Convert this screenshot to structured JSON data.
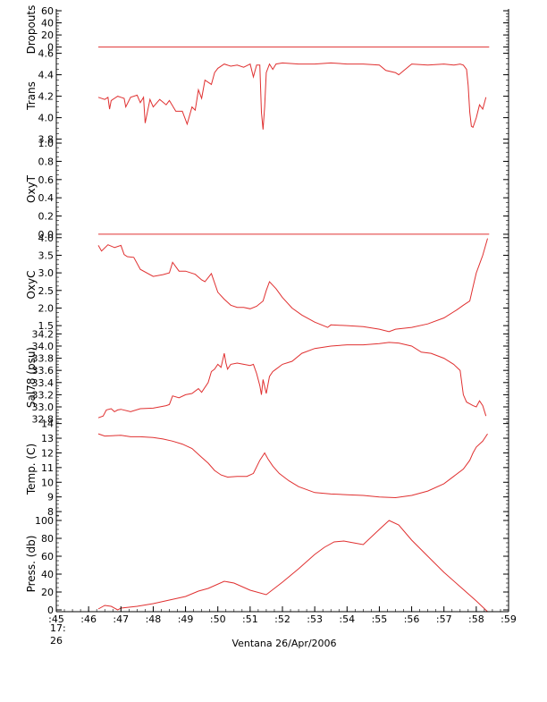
{
  "chart_data": {
    "type": "line",
    "title": "",
    "xlabel": "Ventana 26/Apr/2006",
    "x_start_label": [
      "17:",
      "26"
    ],
    "x_ticks": [
      ":45",
      ":46",
      ":47",
      ":48",
      ":49",
      ":50",
      ":51",
      ":52",
      ":53",
      ":54",
      ":55",
      ":56",
      ":57",
      ":58",
      ":59"
    ],
    "xlim": [
      45,
      59
    ],
    "grid": false,
    "line_color": "#e03030",
    "panels": [
      {
        "name": "dropouts",
        "ylabel": "Dropouts",
        "ylim": [
          -5,
          63
        ],
        "yticks": [
          0,
          20,
          40,
          60
        ],
        "series": [
          {
            "x": [
              46.3,
              58.4
            ],
            "y": [
              0,
              0
            ]
          }
        ]
      },
      {
        "name": "trans",
        "ylabel": "Trans",
        "ylim": [
          3.78,
          4.63
        ],
        "yticks": [
          3.8,
          4.0,
          4.2,
          4.4,
          4.6
        ],
        "ytick_labels": [
          "3.8",
          "4.0",
          "4.2",
          "4.4",
          "4.6"
        ],
        "series": [
          {
            "x": [
              46.3,
              46.5,
              46.6,
              46.65,
              46.7,
              46.9,
              47.0,
              47.1,
              47.15,
              47.3,
              47.5,
              47.6,
              47.7,
              47.75,
              47.9,
              48.0,
              48.2,
              48.4,
              48.5,
              48.7,
              48.9,
              49.05,
              49.2,
              49.3,
              49.4,
              49.5,
              49.6,
              49.8,
              49.9,
              50.0,
              50.2,
              50.4,
              50.6,
              50.8,
              51.0,
              51.1,
              51.2,
              51.3,
              51.35,
              51.4,
              51.45,
              51.5,
              51.6,
              51.7,
              51.8,
              52.0,
              52.5,
              53.0,
              53.5,
              54.0,
              54.5,
              55.0,
              55.2,
              55.5,
              55.6,
              55.8,
              56.0,
              56.5,
              57.0,
              57.3,
              57.5,
              57.6,
              57.7,
              57.75,
              57.8,
              57.85,
              57.9,
              58.0,
              58.1,
              58.2,
              58.3
            ],
            "y": [
              4.19,
              4.17,
              4.19,
              4.08,
              4.16,
              4.2,
              4.19,
              4.18,
              4.1,
              4.19,
              4.21,
              4.14,
              4.19,
              3.95,
              4.17,
              4.1,
              4.17,
              4.12,
              4.16,
              4.06,
              4.06,
              3.94,
              4.1,
              4.07,
              4.26,
              4.18,
              4.35,
              4.31,
              4.42,
              4.46,
              4.5,
              4.48,
              4.49,
              4.47,
              4.5,
              4.38,
              4.49,
              4.49,
              4.05,
              3.89,
              4.1,
              4.42,
              4.5,
              4.45,
              4.5,
              4.51,
              4.5,
              4.5,
              4.51,
              4.5,
              4.5,
              4.49,
              4.44,
              4.42,
              4.4,
              4.45,
              4.5,
              4.49,
              4.5,
              4.49,
              4.5,
              4.49,
              4.45,
              4.3,
              4.05,
              3.92,
              3.91,
              4.0,
              4.12,
              4.08,
              4.19
            ]
          }
        ]
      },
      {
        "name": "oxyt",
        "ylabel": "OxyT",
        "ylim": [
          -0.03,
          1.02
        ],
        "yticks": [
          0.0,
          0.2,
          0.4,
          0.6,
          0.8,
          1.0
        ],
        "ytick_labels": [
          "0.0",
          "0.2",
          "0.4",
          "0.6",
          "0.8",
          "1.0"
        ],
        "series": [
          {
            "x": [
              46.3,
              58.4
            ],
            "y": [
              0,
              0
            ]
          }
        ]
      },
      {
        "name": "oxyc",
        "ylabel": "OxyC",
        "ylim": [
          1.3,
          4.02
        ],
        "yticks": [
          1.5,
          2.0,
          2.5,
          3.0,
          3.5,
          4.0
        ],
        "ytick_labels": [
          "1.5",
          "2.0",
          "2.5",
          "3.0",
          "3.5",
          "4.0"
        ],
        "series": [
          {
            "x": [
              46.3,
              46.4,
              46.6,
              46.8,
              47.0,
              47.1,
              47.2,
              47.4,
              47.6,
              48.0,
              48.3,
              48.5,
              48.6,
              48.8,
              49.0,
              49.3,
              49.5,
              49.6,
              49.8,
              50.0,
              50.2,
              50.4,
              50.6,
              50.8,
              51.0,
              51.2,
              51.4,
              51.5,
              51.6,
              51.8,
              52.0,
              52.3,
              52.6,
              53.0,
              53.4,
              53.5,
              54.0,
              54.5,
              55.0,
              55.3,
              55.5,
              56.0,
              56.5,
              57.0,
              57.4,
              57.6,
              57.8,
              57.9,
              58.0,
              58.1,
              58.2,
              58.35
            ],
            "y": [
              3.78,
              3.62,
              3.8,
              3.72,
              3.78,
              3.52,
              3.46,
              3.44,
              3.1,
              2.9,
              2.95,
              3.0,
              3.3,
              3.05,
              3.05,
              2.96,
              2.8,
              2.75,
              2.98,
              2.45,
              2.25,
              2.08,
              2.02,
              2.02,
              1.98,
              2.05,
              2.2,
              2.5,
              2.75,
              2.55,
              2.3,
              2.0,
              1.8,
              1.6,
              1.45,
              1.52,
              1.5,
              1.47,
              1.4,
              1.33,
              1.4,
              1.45,
              1.55,
              1.72,
              1.95,
              2.08,
              2.2,
              2.6,
              3.0,
              3.25,
              3.5,
              3.98
            ]
          }
        ]
      },
      {
        "name": "sal78",
        "ylabel": "Sal78 (psu)",
        "ylim": [
          32.75,
          34.22
        ],
        "yticks": [
          32.8,
          33.0,
          33.2,
          33.4,
          33.6,
          33.8,
          34.0,
          34.2
        ],
        "ytick_labels": [
          "32.8",
          "33.0",
          "33.2",
          "33.4",
          "33.6",
          "33.8",
          "34.0",
          "34.2"
        ],
        "series": [
          {
            "x": [
              46.3,
              46.45,
              46.55,
              46.7,
              46.8,
              46.9,
              47.0,
              47.3,
              47.6,
              48.0,
              48.2,
              48.4,
              48.5,
              48.6,
              48.8,
              49.0,
              49.2,
              49.4,
              49.5,
              49.7,
              49.8,
              49.9,
              50.0,
              50.1,
              50.2,
              50.25,
              50.3,
              50.4,
              50.6,
              50.8,
              51.0,
              51.1,
              51.2,
              51.3,
              51.35,
              51.4,
              51.5,
              51.6,
              51.7,
              51.8,
              52.0,
              52.3,
              52.6,
              53.0,
              53.5,
              54.0,
              54.5,
              55.0,
              55.3,
              55.6,
              56.0,
              56.3,
              56.6,
              57.0,
              57.3,
              57.5,
              57.6,
              57.7,
              57.8,
              57.9,
              58.0,
              58.1,
              58.2,
              58.3
            ],
            "y": [
              32.82,
              32.85,
              32.95,
              32.97,
              32.92,
              32.95,
              32.96,
              32.92,
              32.97,
              32.98,
              33.0,
              33.02,
              33.04,
              33.18,
              33.15,
              33.2,
              33.22,
              33.3,
              33.24,
              33.4,
              33.58,
              33.62,
              33.7,
              33.65,
              33.88,
              33.72,
              33.62,
              33.7,
              33.72,
              33.7,
              33.68,
              33.7,
              33.55,
              33.35,
              33.2,
              33.45,
              33.22,
              33.5,
              33.58,
              33.62,
              33.7,
              33.75,
              33.88,
              33.96,
              34.0,
              34.02,
              34.02,
              34.04,
              34.06,
              34.05,
              34.0,
              33.9,
              33.88,
              33.8,
              33.7,
              33.6,
              33.2,
              33.08,
              33.05,
              33.02,
              33.0,
              33.1,
              33.02,
              32.85
            ]
          }
        ]
      },
      {
        "name": "temp",
        "ylabel": "Temp. (C)",
        "ylim": [
          7.7,
          14.1
        ],
        "yticks": [
          8,
          9,
          10,
          11,
          12,
          13,
          14
        ],
        "ytick_labels": [
          "8",
          "9",
          "10",
          "11",
          "12",
          "13",
          "14"
        ],
        "series": [
          {
            "x": [
              46.3,
              46.5,
              47.0,
              47.3,
              47.6,
              48.0,
              48.3,
              48.6,
              48.9,
              49.2,
              49.5,
              49.7,
              49.9,
              50.1,
              50.3,
              50.6,
              50.9,
              51.1,
              51.3,
              51.45,
              51.55,
              51.7,
              51.9,
              52.2,
              52.5,
              53.0,
              53.5,
              54.0,
              54.5,
              55.0,
              55.5,
              56.0,
              56.5,
              57.0,
              57.3,
              57.6,
              57.8,
              57.9,
              58.0,
              58.2,
              58.35
            ],
            "y": [
              13.3,
              13.15,
              13.2,
              13.1,
              13.1,
              13.05,
              12.95,
              12.8,
              12.6,
              12.3,
              11.7,
              11.3,
              10.8,
              10.5,
              10.35,
              10.4,
              10.4,
              10.6,
              11.5,
              12.0,
              11.6,
              11.1,
              10.6,
              10.1,
              9.7,
              9.3,
              9.2,
              9.15,
              9.1,
              9.0,
              8.95,
              9.1,
              9.4,
              9.9,
              10.4,
              10.9,
              11.5,
              12.0,
              12.4,
              12.8,
              13.3
            ]
          }
        ]
      },
      {
        "name": "press",
        "ylabel": "Press. (db)",
        "ylim": [
          -2,
          105
        ],
        "yticks": [
          0,
          20,
          40,
          60,
          80,
          100
        ],
        "ytick_labels": [
          "0",
          "20",
          "40",
          "60",
          "80",
          "100"
        ],
        "series": [
          {
            "x": [
              46.3,
              46.5,
              46.7,
              46.9,
              47.0,
              47.5,
              48.0,
              48.5,
              49.0,
              49.4,
              49.7,
              50.2,
              50.5,
              51.0,
              51.5,
              52.0,
              52.5,
              53.0,
              53.3,
              53.6,
              53.9,
              54.2,
              54.5,
              55.0,
              55.3,
              55.6,
              56.0,
              56.5,
              57.0,
              57.5,
              58.0,
              58.35
            ],
            "y": [
              1,
              5,
              4,
              0,
              2,
              4,
              7,
              11,
              15,
              21,
              24,
              32,
              30,
              22,
              17,
              31,
              46,
              62,
              70,
              76,
              77,
              75,
              73,
              90,
              100,
              95,
              78,
              60,
              42,
              26,
              10,
              -2
            ]
          }
        ]
      }
    ]
  }
}
